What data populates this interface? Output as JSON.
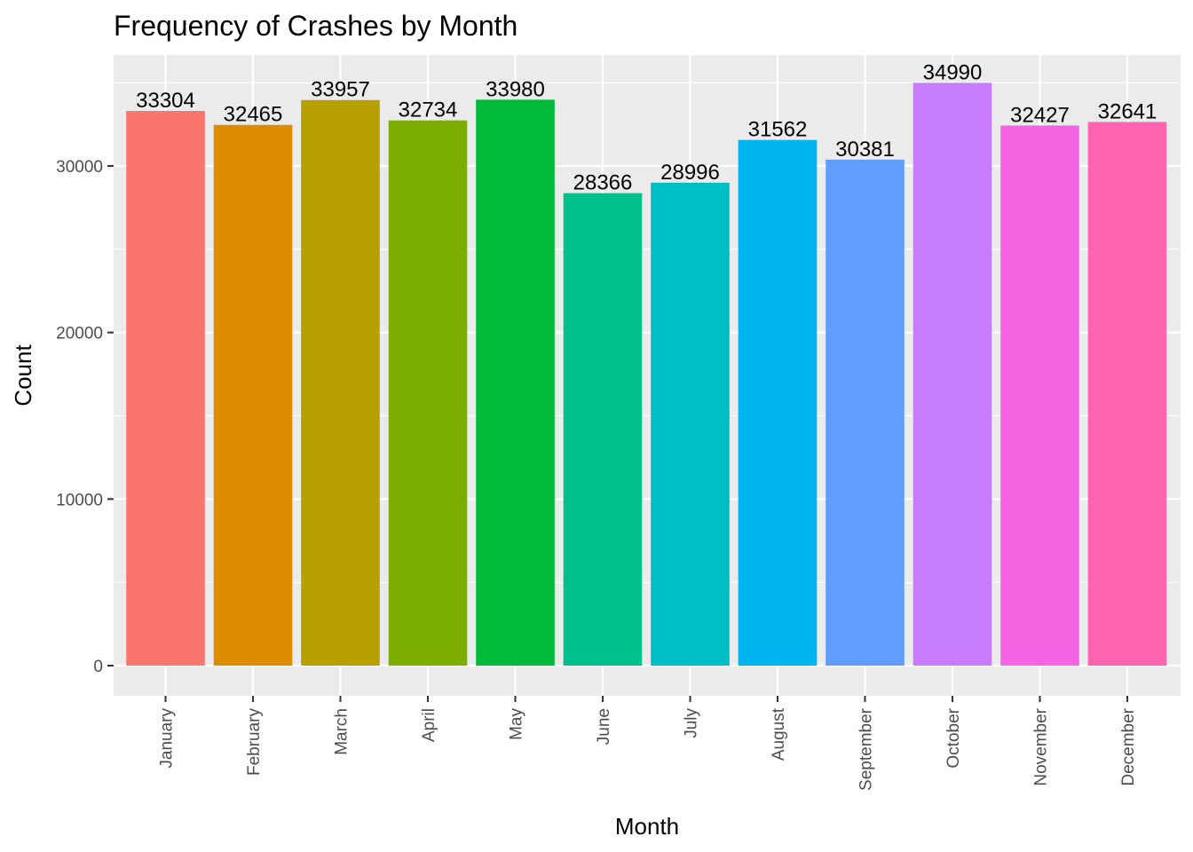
{
  "chart_data": {
    "type": "bar",
    "title": "Frequency of Crashes by Month",
    "xlabel": "Month",
    "ylabel": "Count",
    "categories": [
      "January",
      "February",
      "March",
      "April",
      "May",
      "June",
      "July",
      "August",
      "September",
      "October",
      "November",
      "December"
    ],
    "values": [
      33304,
      32465,
      33957,
      32734,
      33980,
      28366,
      28996,
      31562,
      30381,
      34990,
      32427,
      32641
    ],
    "data_labels": [
      "33304",
      "32465",
      "33957",
      "32734",
      "33980",
      "28366",
      "28996",
      "31562",
      "30381",
      "34990",
      "32427",
      "32641"
    ],
    "colors": [
      "#F8766D",
      "#DE8C00",
      "#B79F00",
      "#7CAE00",
      "#00BA38",
      "#00C08B",
      "#00BFC4",
      "#00B4F0",
      "#619CFF",
      "#C77CFF",
      "#F564E3",
      "#FF64B0"
    ],
    "y_ticks": [
      0,
      10000,
      20000,
      30000
    ],
    "y_tick_labels": [
      "0",
      "10000",
      "20000",
      "30000"
    ],
    "ylim": [
      0,
      35000
    ],
    "grid": true,
    "legend": "none",
    "panel_background": "#EBEBEB",
    "gridline_color": "#FFFFFF"
  }
}
